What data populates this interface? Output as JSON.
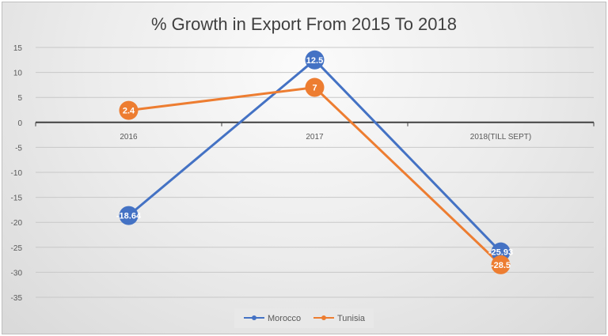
{
  "chart_data": {
    "type": "line",
    "title": "% Growth in Export From 2015 To 2018",
    "xlabel": "",
    "ylabel": "",
    "categories": [
      "2016",
      "2017",
      "2018(TILL SEPT)"
    ],
    "series": [
      {
        "name": "Morocco",
        "values": [
          -18.64,
          12.5,
          -25.93
        ],
        "labels": [
          "-18.64",
          "12.5",
          "-25.93"
        ],
        "color": "#4472c4"
      },
      {
        "name": "Tunisia",
        "values": [
          2.4,
          7,
          -28.5
        ],
        "labels": [
          "2.4",
          "7",
          "-28.5"
        ],
        "color": "#ed7d31"
      }
    ],
    "ylim": [
      -35,
      15
    ],
    "yticks": [
      15,
      10,
      5,
      0,
      -5,
      -10,
      -15,
      -20,
      -25,
      -30,
      -35
    ],
    "grid": true,
    "legend": "bottom",
    "data_labels": true
  }
}
